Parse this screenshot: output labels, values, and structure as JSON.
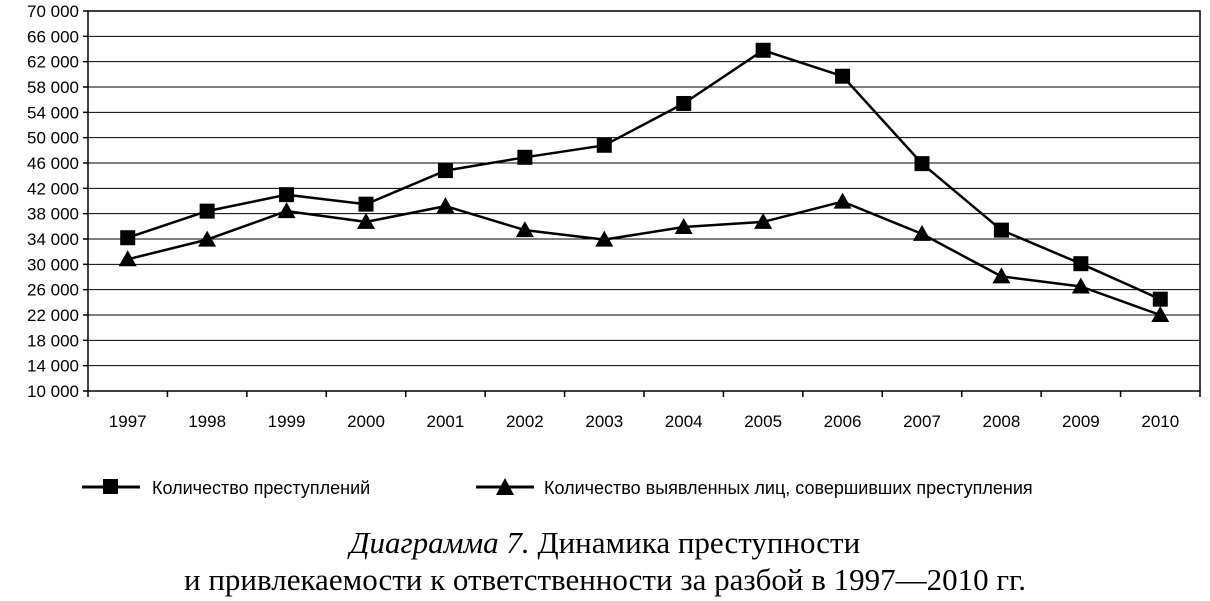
{
  "chart_data": {
    "type": "line",
    "categories": [
      "1997",
      "1998",
      "1999",
      "2000",
      "2001",
      "2002",
      "2003",
      "2004",
      "2005",
      "2006",
      "2007",
      "2008",
      "2009",
      "2010"
    ],
    "y_ticks": [
      "10 000",
      "14 000",
      "18 000",
      "22 000",
      "26 000",
      "30 000",
      "34 000",
      "38 000",
      "42 000",
      "46 000",
      "50 000",
      "54 000",
      "58 000",
      "62 000",
      "66 000",
      "70 000"
    ],
    "ylim": [
      10000,
      70000
    ],
    "grid": "horizontal",
    "legend_position": "bottom",
    "series": [
      {
        "name": "Количество преступлений",
        "marker": "square",
        "values": [
          34200,
          38400,
          41000,
          39500,
          44800,
          46900,
          48800,
          55400,
          63800,
          59700,
          45900,
          35400,
          30100,
          24500
        ]
      },
      {
        "name": "Количество выявленных лиц, совершивших преступления",
        "marker": "triangle",
        "values": [
          30800,
          33900,
          38400,
          36700,
          39200,
          35400,
          33900,
          35900,
          36700,
          39900,
          34800,
          28100,
          26500,
          22000
        ]
      }
    ]
  },
  "caption": {
    "label": "Диаграмма 7.",
    "line1": " Динамика преступности",
    "line2": "и привлекаемости к ответственности за разбой в 1997—2010 гг."
  }
}
